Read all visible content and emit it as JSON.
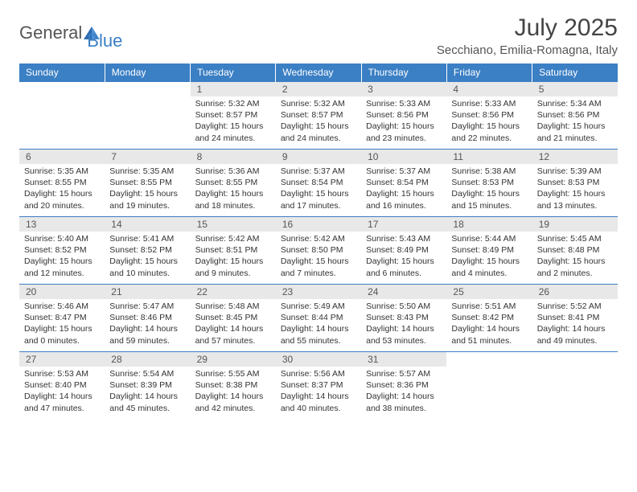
{
  "brand": {
    "part1": "General",
    "part2": "Blue"
  },
  "title": "July 2025",
  "location": "Secchiano, Emilia-Romagna, Italy",
  "colors": {
    "header_bg": "#3b7fc4",
    "header_text": "#ffffff",
    "daynum_bg": "#e8e8e8",
    "daynum_text": "#555555",
    "body_text": "#333333",
    "border": "#3b7fc4",
    "page_bg": "#ffffff"
  },
  "weekdays": [
    "Sunday",
    "Monday",
    "Tuesday",
    "Wednesday",
    "Thursday",
    "Friday",
    "Saturday"
  ],
  "weeks": [
    [
      null,
      null,
      {
        "n": "1",
        "sr": "Sunrise: 5:32 AM",
        "ss": "Sunset: 8:57 PM",
        "dl": "Daylight: 15 hours and 24 minutes."
      },
      {
        "n": "2",
        "sr": "Sunrise: 5:32 AM",
        "ss": "Sunset: 8:57 PM",
        "dl": "Daylight: 15 hours and 24 minutes."
      },
      {
        "n": "3",
        "sr": "Sunrise: 5:33 AM",
        "ss": "Sunset: 8:56 PM",
        "dl": "Daylight: 15 hours and 23 minutes."
      },
      {
        "n": "4",
        "sr": "Sunrise: 5:33 AM",
        "ss": "Sunset: 8:56 PM",
        "dl": "Daylight: 15 hours and 22 minutes."
      },
      {
        "n": "5",
        "sr": "Sunrise: 5:34 AM",
        "ss": "Sunset: 8:56 PM",
        "dl": "Daylight: 15 hours and 21 minutes."
      }
    ],
    [
      {
        "n": "6",
        "sr": "Sunrise: 5:35 AM",
        "ss": "Sunset: 8:55 PM",
        "dl": "Daylight: 15 hours and 20 minutes."
      },
      {
        "n": "7",
        "sr": "Sunrise: 5:35 AM",
        "ss": "Sunset: 8:55 PM",
        "dl": "Daylight: 15 hours and 19 minutes."
      },
      {
        "n": "8",
        "sr": "Sunrise: 5:36 AM",
        "ss": "Sunset: 8:55 PM",
        "dl": "Daylight: 15 hours and 18 minutes."
      },
      {
        "n": "9",
        "sr": "Sunrise: 5:37 AM",
        "ss": "Sunset: 8:54 PM",
        "dl": "Daylight: 15 hours and 17 minutes."
      },
      {
        "n": "10",
        "sr": "Sunrise: 5:37 AM",
        "ss": "Sunset: 8:54 PM",
        "dl": "Daylight: 15 hours and 16 minutes."
      },
      {
        "n": "11",
        "sr": "Sunrise: 5:38 AM",
        "ss": "Sunset: 8:53 PM",
        "dl": "Daylight: 15 hours and 15 minutes."
      },
      {
        "n": "12",
        "sr": "Sunrise: 5:39 AM",
        "ss": "Sunset: 8:53 PM",
        "dl": "Daylight: 15 hours and 13 minutes."
      }
    ],
    [
      {
        "n": "13",
        "sr": "Sunrise: 5:40 AM",
        "ss": "Sunset: 8:52 PM",
        "dl": "Daylight: 15 hours and 12 minutes."
      },
      {
        "n": "14",
        "sr": "Sunrise: 5:41 AM",
        "ss": "Sunset: 8:52 PM",
        "dl": "Daylight: 15 hours and 10 minutes."
      },
      {
        "n": "15",
        "sr": "Sunrise: 5:42 AM",
        "ss": "Sunset: 8:51 PM",
        "dl": "Daylight: 15 hours and 9 minutes."
      },
      {
        "n": "16",
        "sr": "Sunrise: 5:42 AM",
        "ss": "Sunset: 8:50 PM",
        "dl": "Daylight: 15 hours and 7 minutes."
      },
      {
        "n": "17",
        "sr": "Sunrise: 5:43 AM",
        "ss": "Sunset: 8:49 PM",
        "dl": "Daylight: 15 hours and 6 minutes."
      },
      {
        "n": "18",
        "sr": "Sunrise: 5:44 AM",
        "ss": "Sunset: 8:49 PM",
        "dl": "Daylight: 15 hours and 4 minutes."
      },
      {
        "n": "19",
        "sr": "Sunrise: 5:45 AM",
        "ss": "Sunset: 8:48 PM",
        "dl": "Daylight: 15 hours and 2 minutes."
      }
    ],
    [
      {
        "n": "20",
        "sr": "Sunrise: 5:46 AM",
        "ss": "Sunset: 8:47 PM",
        "dl": "Daylight: 15 hours and 0 minutes."
      },
      {
        "n": "21",
        "sr": "Sunrise: 5:47 AM",
        "ss": "Sunset: 8:46 PM",
        "dl": "Daylight: 14 hours and 59 minutes."
      },
      {
        "n": "22",
        "sr": "Sunrise: 5:48 AM",
        "ss": "Sunset: 8:45 PM",
        "dl": "Daylight: 14 hours and 57 minutes."
      },
      {
        "n": "23",
        "sr": "Sunrise: 5:49 AM",
        "ss": "Sunset: 8:44 PM",
        "dl": "Daylight: 14 hours and 55 minutes."
      },
      {
        "n": "24",
        "sr": "Sunrise: 5:50 AM",
        "ss": "Sunset: 8:43 PM",
        "dl": "Daylight: 14 hours and 53 minutes."
      },
      {
        "n": "25",
        "sr": "Sunrise: 5:51 AM",
        "ss": "Sunset: 8:42 PM",
        "dl": "Daylight: 14 hours and 51 minutes."
      },
      {
        "n": "26",
        "sr": "Sunrise: 5:52 AM",
        "ss": "Sunset: 8:41 PM",
        "dl": "Daylight: 14 hours and 49 minutes."
      }
    ],
    [
      {
        "n": "27",
        "sr": "Sunrise: 5:53 AM",
        "ss": "Sunset: 8:40 PM",
        "dl": "Daylight: 14 hours and 47 minutes."
      },
      {
        "n": "28",
        "sr": "Sunrise: 5:54 AM",
        "ss": "Sunset: 8:39 PM",
        "dl": "Daylight: 14 hours and 45 minutes."
      },
      {
        "n": "29",
        "sr": "Sunrise: 5:55 AM",
        "ss": "Sunset: 8:38 PM",
        "dl": "Daylight: 14 hours and 42 minutes."
      },
      {
        "n": "30",
        "sr": "Sunrise: 5:56 AM",
        "ss": "Sunset: 8:37 PM",
        "dl": "Daylight: 14 hours and 40 minutes."
      },
      {
        "n": "31",
        "sr": "Sunrise: 5:57 AM",
        "ss": "Sunset: 8:36 PM",
        "dl": "Daylight: 14 hours and 38 minutes."
      },
      null,
      null
    ]
  ]
}
